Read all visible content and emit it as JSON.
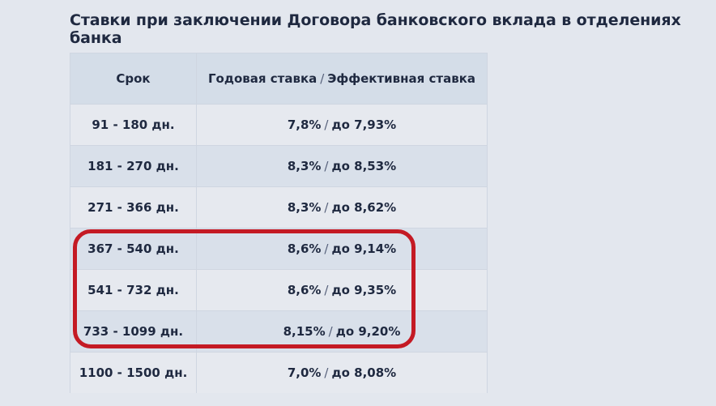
{
  "page": {
    "title": "Ставки при заключении Договора банковского вклада в отделениях банка"
  },
  "table": {
    "headers": {
      "term": "Срок",
      "rate_prefix": "Годовая ставка",
      "separator": "/",
      "rate_suffix": "Эффективная ставка"
    },
    "rows": [
      {
        "term": "91 - 180 дн.",
        "annual": "7,8%",
        "separator": "/",
        "effective": "до 7,93%"
      },
      {
        "term": "181 - 270 дн.",
        "annual": "8,3%",
        "separator": "/",
        "effective": "до 8,53%"
      },
      {
        "term": "271 - 366 дн.",
        "annual": "8,3%",
        "separator": "/",
        "effective": "до 8,62%"
      },
      {
        "term": "367 - 540 дн.",
        "annual": "8,6%",
        "separator": "/",
        "effective": "до 9,14%"
      },
      {
        "term": "541 - 732 дн.",
        "annual": "8,6%",
        "separator": "/",
        "effective": "до 9,35%"
      },
      {
        "term": "733 - 1099 дн.",
        "annual": "8,15%",
        "separator": "/",
        "effective": "до 9,20%"
      },
      {
        "term": "1100 - 1500 дн.",
        "annual": "7,0%",
        "separator": "/",
        "effective": "до 8,08%"
      }
    ]
  },
  "highlight": {
    "color": "#c41a24",
    "rows_highlighted": [
      "367 - 540 дн.",
      "541 - 732 дн.",
      "733 - 1099 дн."
    ]
  }
}
